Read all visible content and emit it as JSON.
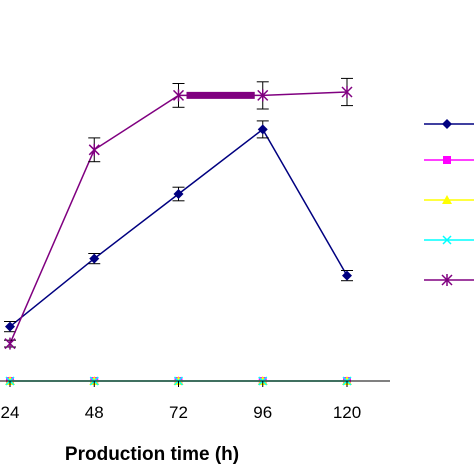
{
  "chart_data": {
    "type": "line",
    "xlabel": "Production time (h)",
    "ylabel": "",
    "x": [
      24,
      48,
      72,
      96,
      120
    ],
    "x_tick_labels": [
      "24",
      "48",
      "72",
      "96",
      "120"
    ],
    "xlim": [
      20,
      132
    ],
    "ylim": [
      0,
      100
    ],
    "grid": false,
    "legend_position": "right",
    "series": [
      {
        "color": "#000080",
        "marker": "diamond",
        "values": [
          16,
          36,
          55,
          74,
          31
        ],
        "errors": [
          1.5,
          1.5,
          2,
          2.5,
          1.5
        ]
      },
      {
        "color": "#FF00FF",
        "marker": "square",
        "values": [
          0,
          0,
          0,
          0,
          0
        ],
        "errors": [
          0,
          0,
          0,
          0,
          0
        ]
      },
      {
        "color": "#FFFF00",
        "marker": "triangle",
        "values": [
          0,
          0,
          0,
          0,
          0
        ],
        "errors": [
          0,
          0,
          0,
          0,
          0
        ]
      },
      {
        "color": "#00FFFF",
        "marker": "x",
        "values": [
          0,
          0,
          0,
          0,
          0
        ],
        "errors": [
          0,
          0,
          0,
          0,
          0
        ]
      },
      {
        "color": "#800080",
        "marker": "star",
        "values": [
          11,
          68,
          84,
          84,
          85
        ],
        "errors": [
          1,
          3.5,
          3.5,
          4,
          4
        ]
      }
    ]
  }
}
